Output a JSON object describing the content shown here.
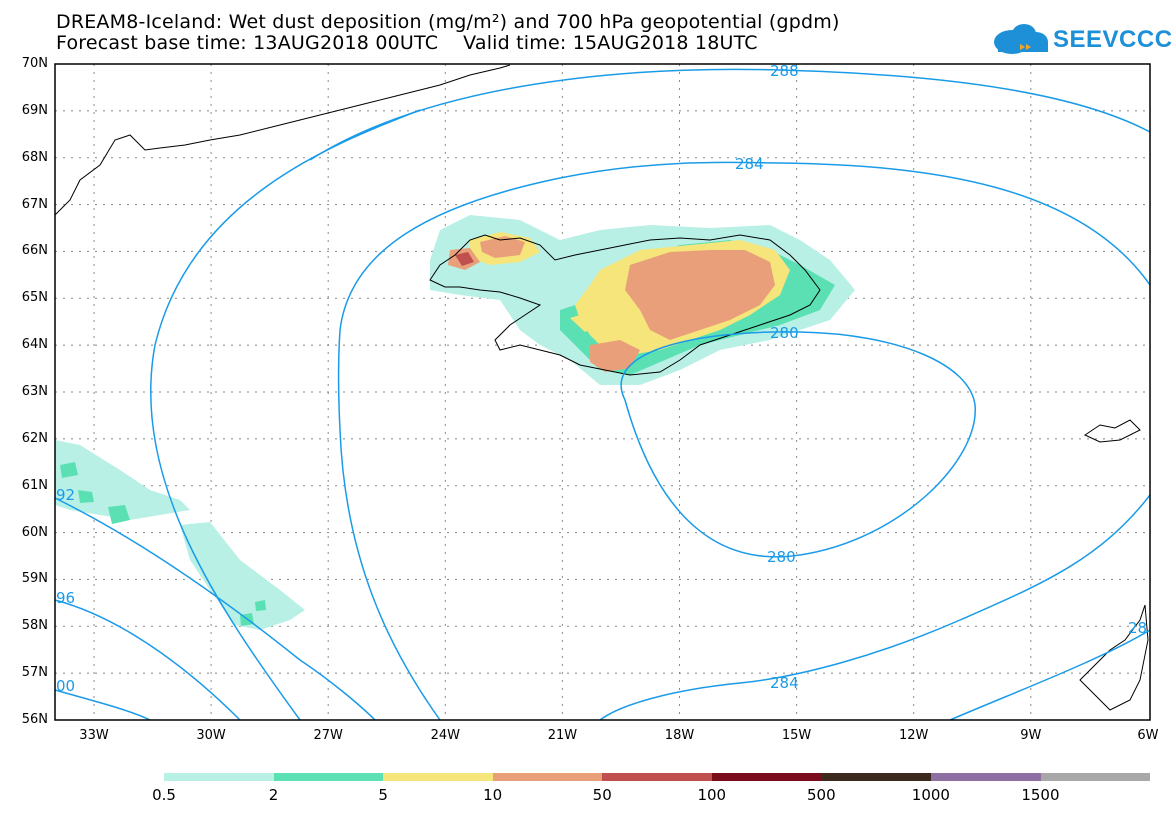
{
  "header": {
    "title_line1": "DREAM8-Iceland: Wet dust deposition (mg/m²) and 700 hPa geopotential (gpdm)",
    "title_line2": "Forecast base time: 13AUG2018 00UTC    Valid time: 15AUG2018 18UTC"
  },
  "logo": {
    "text": "SEEVCCC",
    "icon": "cloud-icon",
    "color": "#1e90d8"
  },
  "map": {
    "lat_labels": [
      "70N",
      "69N",
      "68N",
      "67N",
      "66N",
      "65N",
      "64N",
      "63N",
      "62N",
      "61N",
      "60N",
      "59N",
      "58N",
      "57N",
      "56N"
    ],
    "lon_labels": [
      "33W",
      "30W",
      "27W",
      "24W",
      "21W",
      "18W",
      "15W",
      "12W",
      "9W",
      "6W"
    ],
    "contour_color": "#1a9be8",
    "contour_labels": [
      "288",
      "284",
      "280",
      "280",
      "284",
      "92",
      "96",
      "00",
      "28"
    ]
  },
  "legend": {
    "colors": [
      "#b8f0e6",
      "#5be0b4",
      "#f5e57a",
      "#e9a07a",
      "#c0504d",
      "#7a0c1c",
      "#3d2a1e",
      "#8f6ea3",
      "#a8a8a8"
    ],
    "labels": [
      "0.5",
      "2",
      "5",
      "10",
      "50",
      "100",
      "500",
      "1000",
      "1500"
    ]
  }
}
